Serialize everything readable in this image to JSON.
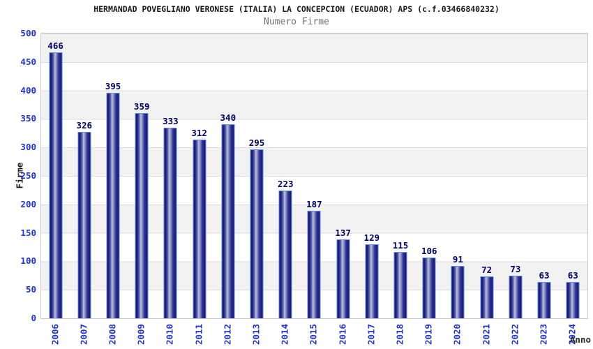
{
  "chart_data": {
    "type": "bar",
    "title": "HERMANDAD POVEGLIANO VERONESE (ITALIA) LA CONCEPCION (ECUADOR) APS (c.f.03466840232)",
    "subtitle": "Numero Firme",
    "xlabel": "Anno",
    "ylabel": "Firme",
    "categories": [
      "2006",
      "2007",
      "2008",
      "2009",
      "2010",
      "2011",
      "2012",
      "2013",
      "2014",
      "2015",
      "2016",
      "2017",
      "2018",
      "2019",
      "2020",
      "2021",
      "2022",
      "2023",
      "2024"
    ],
    "values": [
      466,
      326,
      395,
      359,
      333,
      312,
      340,
      295,
      223,
      187,
      137,
      129,
      115,
      106,
      91,
      72,
      73,
      63,
      63
    ],
    "ylim": [
      0,
      500
    ],
    "ytick_step": 50,
    "yticks": [
      0,
      50,
      100,
      150,
      200,
      250,
      300,
      350,
      400,
      450,
      500
    ],
    "grid": true,
    "legend_position": "none",
    "band_fill_alternating": true,
    "colors": {
      "bar_dark": "#1e1e78",
      "bar_highlight": "#bcc2de",
      "bar_border": "#5b8cf0",
      "tick_label": "#2233cc",
      "value_label": "#000066",
      "title": "#1a1a1a",
      "subtitle": "#737373",
      "axis_title": "#1a1a1a",
      "band_gray": "#f2f2f2",
      "band_white": "#ffffff",
      "plot_border": "#c9c9c9",
      "gridline": "#dcdcdc"
    }
  }
}
